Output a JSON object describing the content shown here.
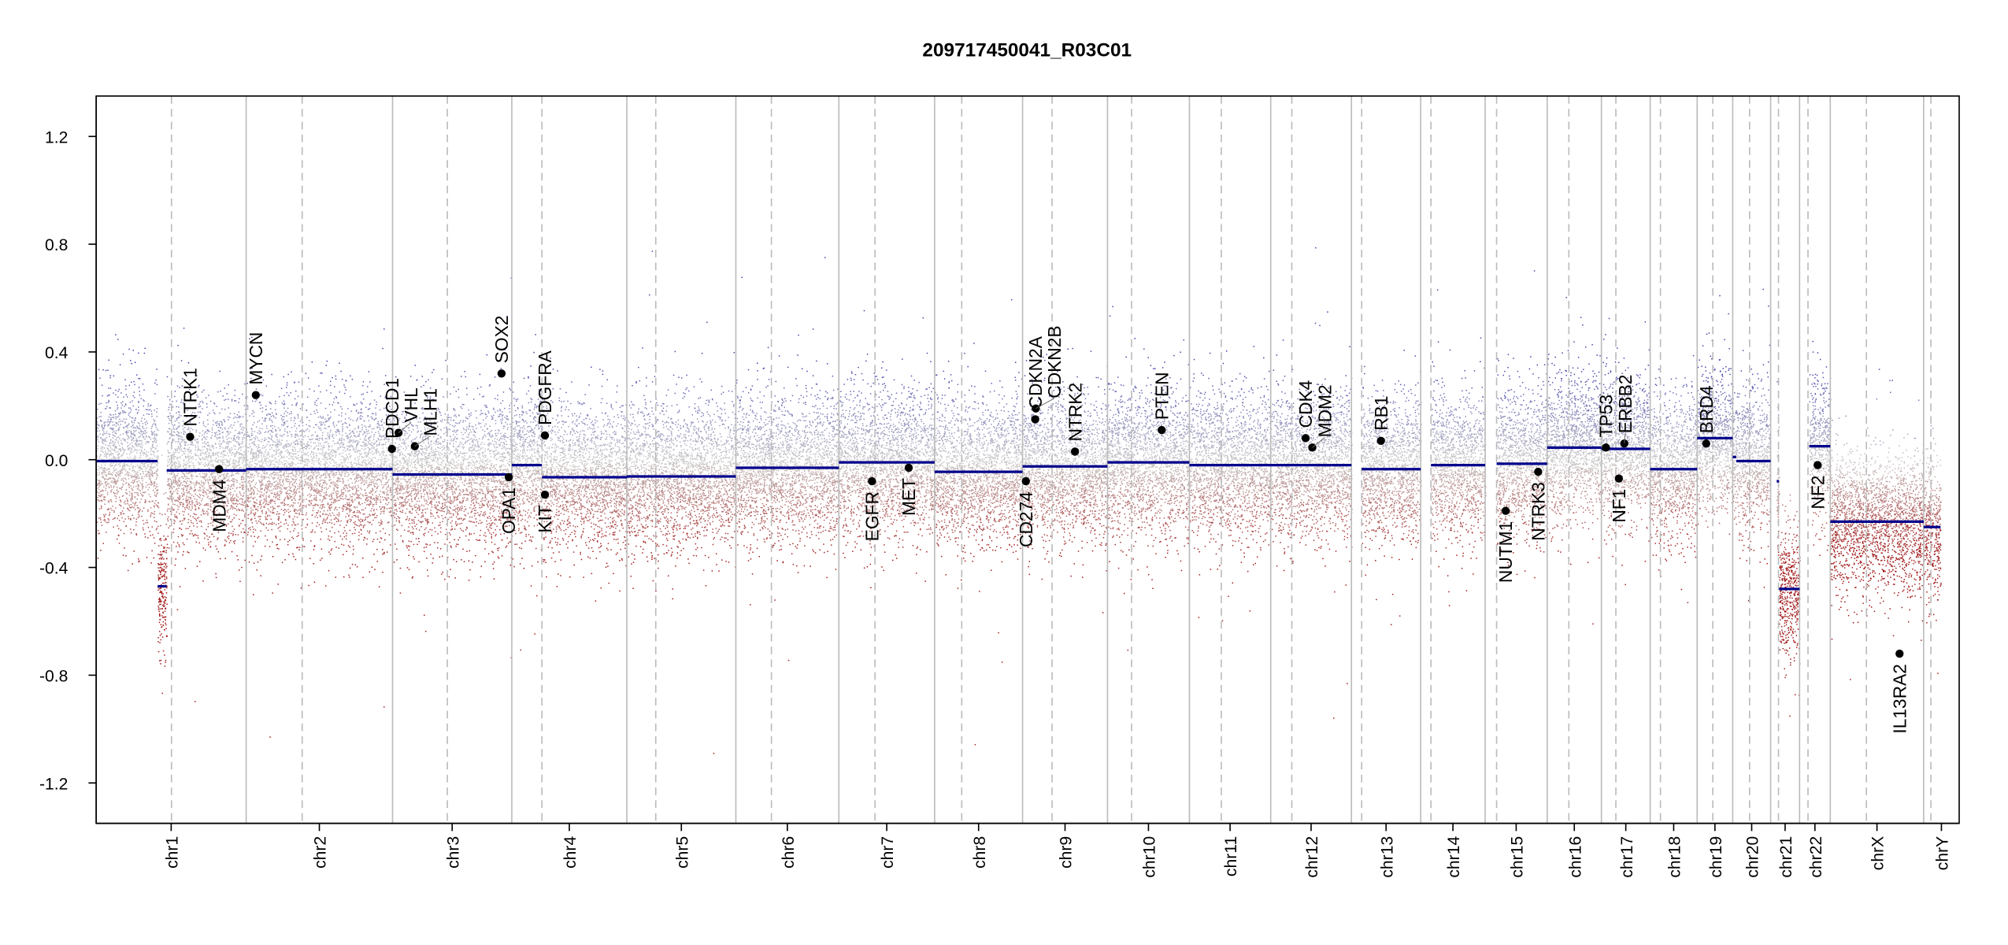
{
  "chart_data": {
    "type": "scatter",
    "title": "209717450041_R03C01",
    "xlabel": "",
    "ylabel": "",
    "ylim": [
      -1.35,
      1.35
    ],
    "yticks": [
      "1.2",
      "0.8",
      "0.4",
      "0.0",
      "-0.4",
      "-0.8",
      "-1.2"
    ],
    "ytick_values": [
      1.2,
      0.8,
      0.4,
      0.0,
      -0.4,
      -0.8,
      -1.2
    ],
    "grid": false,
    "colors": {
      "segment": "#00008b",
      "gain": "#3a3aa8",
      "neutral": "#c8c8c8",
      "loss": "#a01818",
      "gene": "#000000",
      "chrom_line": "#bbbbbb"
    },
    "chromosomes": [
      {
        "name": "chr1",
        "length_mb": 249,
        "centromere_mb": 125
      },
      {
        "name": "chr2",
        "length_mb": 243,
        "centromere_mb": 93
      },
      {
        "name": "chr3",
        "length_mb": 198,
        "centromere_mb": 91
      },
      {
        "name": "chr4",
        "length_mb": 191,
        "centromere_mb": 50
      },
      {
        "name": "chr5",
        "length_mb": 181,
        "centromere_mb": 48
      },
      {
        "name": "chr6",
        "length_mb": 171,
        "centromere_mb": 59
      },
      {
        "name": "chr7",
        "length_mb": 159,
        "centromere_mb": 60
      },
      {
        "name": "chr8",
        "length_mb": 146,
        "centromere_mb": 45
      },
      {
        "name": "chr9",
        "length_mb": 141,
        "centromere_mb": 49
      },
      {
        "name": "chr10",
        "length_mb": 136,
        "centromere_mb": 40
      },
      {
        "name": "chr11",
        "length_mb": 135,
        "centromere_mb": 53
      },
      {
        "name": "chr12",
        "length_mb": 134,
        "centromere_mb": 35
      },
      {
        "name": "chr13",
        "length_mb": 115,
        "centromere_mb": 17
      },
      {
        "name": "chr14",
        "length_mb": 107,
        "centromere_mb": 17
      },
      {
        "name": "chr15",
        "length_mb": 103,
        "centromere_mb": 19
      },
      {
        "name": "chr16",
        "length_mb": 90,
        "centromere_mb": 36
      },
      {
        "name": "chr17",
        "length_mb": 81,
        "centromere_mb": 24
      },
      {
        "name": "chr18",
        "length_mb": 78,
        "centromere_mb": 17
      },
      {
        "name": "chr19",
        "length_mb": 59,
        "centromere_mb": 26
      },
      {
        "name": "chr20",
        "length_mb": 63,
        "centromere_mb": 28
      },
      {
        "name": "chr21",
        "length_mb": 48,
        "centromere_mb": 13
      },
      {
        "name": "chr22",
        "length_mb": 51,
        "centromere_mb": 14
      },
      {
        "name": "chrX",
        "length_mb": 155,
        "centromere_mb": 60
      },
      {
        "name": "chrY",
        "length_mb": 59,
        "centromere_mb": 12
      }
    ],
    "segments": [
      {
        "chr": "chr1",
        "start_mb": 0,
        "end_mb": 102,
        "value": -0.005
      },
      {
        "chr": "chr1",
        "start_mb": 102,
        "end_mb": 117,
        "value": -0.47
      },
      {
        "chr": "chr1",
        "start_mb": 117,
        "end_mb": 249,
        "value": -0.04
      },
      {
        "chr": "chr2",
        "start_mb": 0,
        "end_mb": 243,
        "value": -0.035
      },
      {
        "chr": "chr3",
        "start_mb": 0,
        "end_mb": 198,
        "value": -0.055
      },
      {
        "chr": "chr4",
        "start_mb": 0,
        "end_mb": 50,
        "value": -0.02
      },
      {
        "chr": "chr4",
        "start_mb": 50,
        "end_mb": 191,
        "value": -0.065
      },
      {
        "chr": "chr5",
        "start_mb": 0,
        "end_mb": 181,
        "value": -0.062
      },
      {
        "chr": "chr6",
        "start_mb": 0,
        "end_mb": 171,
        "value": -0.03
      },
      {
        "chr": "chr7",
        "start_mb": 0,
        "end_mb": 159,
        "value": -0.01
      },
      {
        "chr": "chr8",
        "start_mb": 0,
        "end_mb": 146,
        "value": -0.045
      },
      {
        "chr": "chr9",
        "start_mb": 0,
        "end_mb": 141,
        "value": -0.025
      },
      {
        "chr": "chr10",
        "start_mb": 0,
        "end_mb": 136,
        "value": -0.01
      },
      {
        "chr": "chr11",
        "start_mb": 0,
        "end_mb": 135,
        "value": -0.02
      },
      {
        "chr": "chr12",
        "start_mb": 0,
        "end_mb": 134,
        "value": -0.02
      },
      {
        "chr": "chr13",
        "start_mb": 17,
        "end_mb": 115,
        "value": -0.035
      },
      {
        "chr": "chr14",
        "start_mb": 17,
        "end_mb": 107,
        "value": -0.02
      },
      {
        "chr": "chr15",
        "start_mb": 19,
        "end_mb": 103,
        "value": -0.015
      },
      {
        "chr": "chr16",
        "start_mb": 0,
        "end_mb": 90,
        "value": 0.045
      },
      {
        "chr": "chr17",
        "start_mb": 0,
        "end_mb": 81,
        "value": 0.04
      },
      {
        "chr": "chr18",
        "start_mb": 0,
        "end_mb": 78,
        "value": -0.035
      },
      {
        "chr": "chr19",
        "start_mb": 0,
        "end_mb": 59,
        "value": 0.08
      },
      {
        "chr": "chr20",
        "start_mb": 0,
        "end_mb": 6,
        "value": 0.01
      },
      {
        "chr": "chr20",
        "start_mb": 6,
        "end_mb": 63,
        "value": -0.005
      },
      {
        "chr": "chr21",
        "start_mb": 10,
        "end_mb": 14,
        "value": -0.08
      },
      {
        "chr": "chr21",
        "start_mb": 14,
        "end_mb": 48,
        "value": -0.48
      },
      {
        "chr": "chr22",
        "start_mb": 16,
        "end_mb": 51,
        "value": 0.05
      },
      {
        "chr": "chrX",
        "start_mb": 0,
        "end_mb": 155,
        "value": -0.23
      },
      {
        "chr": "chrY",
        "start_mb": 0,
        "end_mb": 28,
        "value": -0.25
      }
    ],
    "genes": [
      {
        "name": "NTRK1",
        "chr": "chr1",
        "pos_mb": 156,
        "value": 0.085
      },
      {
        "name": "MDM4",
        "chr": "chr1",
        "pos_mb": 204,
        "value": -0.035
      },
      {
        "name": "MYCN",
        "chr": "chr2",
        "pos_mb": 16,
        "value": 0.24
      },
      {
        "name": "PDCD1",
        "chr": "chr2",
        "pos_mb": 242,
        "value": 0.04
      },
      {
        "name": "VHL",
        "chr": "chr3",
        "pos_mb": 10,
        "value": 0.1
      },
      {
        "name": "MLH1",
        "chr": "chr3",
        "pos_mb": 37,
        "value": 0.05
      },
      {
        "name": "SOX2",
        "chr": "chr3",
        "pos_mb": 181,
        "value": 0.32
      },
      {
        "name": "OPA1",
        "chr": "chr3",
        "pos_mb": 193,
        "value": -0.065
      },
      {
        "name": "PDGFRA",
        "chr": "chr4",
        "pos_mb": 55,
        "value": 0.09
      },
      {
        "name": "KIT",
        "chr": "chr4",
        "pos_mb": 55,
        "value": -0.13
      },
      {
        "name": "EGFR",
        "chr": "chr7",
        "pos_mb": 55,
        "value": -0.08
      },
      {
        "name": "MET",
        "chr": "chr7",
        "pos_mb": 116,
        "value": -0.03
      },
      {
        "name": "CD274",
        "chr": "chr9",
        "pos_mb": 5.5,
        "value": -0.08
      },
      {
        "name": "CDKN2A",
        "chr": "chr9",
        "pos_mb": 21,
        "value": 0.15
      },
      {
        "name": "CDKN2B",
        "chr": "chr9",
        "pos_mb": 22,
        "value": 0.19
      },
      {
        "name": "NTRK2",
        "chr": "chr9",
        "pos_mb": 87,
        "value": 0.03
      },
      {
        "name": "PTEN",
        "chr": "chr10",
        "pos_mb": 90,
        "value": 0.11
      },
      {
        "name": "CDK4",
        "chr": "chr12",
        "pos_mb": 58,
        "value": 0.08
      },
      {
        "name": "MDM2",
        "chr": "chr12",
        "pos_mb": 69,
        "value": 0.045
      },
      {
        "name": "RB1",
        "chr": "chr13",
        "pos_mb": 49,
        "value": 0.07
      },
      {
        "name": "NUTM1",
        "chr": "chr15",
        "pos_mb": 34,
        "value": -0.19
      },
      {
        "name": "NTRK3",
        "chr": "chr15",
        "pos_mb": 88,
        "value": -0.045
      },
      {
        "name": "TP53",
        "chr": "chr17",
        "pos_mb": 7.5,
        "value": 0.045
      },
      {
        "name": "NF1",
        "chr": "chr17",
        "pos_mb": 29,
        "value": -0.07
      },
      {
        "name": "ERBB2",
        "chr": "chr17",
        "pos_mb": 38,
        "value": 0.06
      },
      {
        "name": "BRD4",
        "chr": "chr19",
        "pos_mb": 15,
        "value": 0.06
      },
      {
        "name": "NF2",
        "chr": "chr22",
        "pos_mb": 30,
        "value": -0.02
      },
      {
        "name": "IL13RA2",
        "chr": "chrX",
        "pos_mb": 115,
        "value": -0.72
      }
    ]
  }
}
